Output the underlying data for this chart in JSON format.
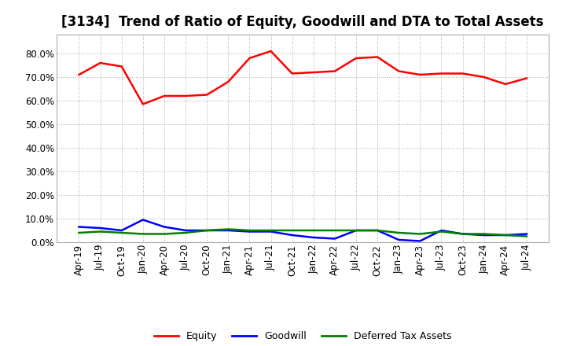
{
  "title": "[3134]  Trend of Ratio of Equity, Goodwill and DTA to Total Assets",
  "x_labels": [
    "Apr-19",
    "Jul-19",
    "Oct-19",
    "Jan-20",
    "Apr-20",
    "Jul-20",
    "Oct-20",
    "Jan-21",
    "Apr-21",
    "Jul-21",
    "Oct-21",
    "Jan-22",
    "Apr-22",
    "Jul-22",
    "Oct-22",
    "Jan-23",
    "Apr-23",
    "Jul-23",
    "Oct-23",
    "Jan-24",
    "Apr-24",
    "Jul-24"
  ],
  "equity": [
    71.0,
    76.0,
    74.5,
    58.5,
    62.0,
    62.0,
    62.5,
    68.0,
    78.0,
    81.0,
    71.5,
    72.0,
    72.5,
    78.0,
    78.5,
    72.5,
    71.0,
    71.5,
    71.5,
    70.0,
    67.0,
    69.5
  ],
  "goodwill": [
    6.5,
    6.0,
    5.0,
    9.5,
    6.5,
    5.0,
    5.0,
    5.0,
    4.5,
    4.5,
    3.0,
    2.0,
    1.5,
    5.0,
    5.0,
    1.0,
    0.5,
    5.0,
    3.5,
    3.0,
    3.0,
    3.5
  ],
  "dta": [
    4.0,
    4.5,
    4.0,
    3.5,
    3.5,
    4.0,
    5.0,
    5.5,
    5.0,
    5.0,
    5.0,
    5.0,
    5.0,
    5.0,
    5.0,
    4.0,
    3.5,
    4.5,
    3.5,
    3.5,
    3.0,
    2.5
  ],
  "equity_color": "#ff0000",
  "goodwill_color": "#0000ff",
  "dta_color": "#008000",
  "plot_bg_color": "#ffffff",
  "fig_bg_color": "#ffffff",
  "grid_color": "#aaaaaa",
  "ylim": [
    0.0,
    88.0
  ],
  "yticks": [
    0.0,
    10.0,
    20.0,
    30.0,
    40.0,
    50.0,
    60.0,
    70.0,
    80.0
  ],
  "legend_labels": [
    "Equity",
    "Goodwill",
    "Deferred Tax Assets"
  ],
  "title_fontsize": 12,
  "tick_fontsize": 8.5,
  "linewidth": 1.8
}
